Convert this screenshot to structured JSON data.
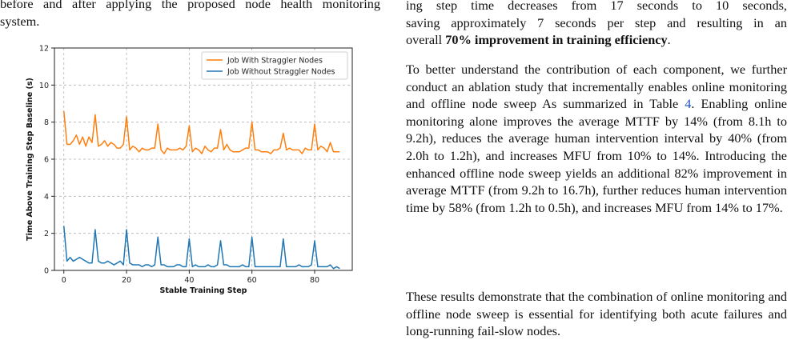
{
  "caption_tail": {
    "line1": "before and after applying the proposed node health monitoring",
    "line2": "system."
  },
  "paragraphs": {
    "p1_line1": "ing step time decreases from 17 seconds to 10 seconds,",
    "p1_line2": "saving approximately 7 seconds per step and resulting in an",
    "p1_line3_pre": "overall ",
    "p1_line3_bold": "70% improvement in training efficiency",
    "p1_line3_post": ".",
    "p2_pre": "To better understand the contribution of each component, we further conduct an ablation study that incrementally enables online monitoring and offline node sweep As summarized in Table ",
    "p2_ref": "4",
    "p2_post": ". Enabling online monitoring alone improves the average MTTF by 14% (from 8.1h to 9.2h), reduces the average human intervention interval by 40% (from 2.0h to 1.2h), and increases MFU from 10% to 14%. Introducing the enhanced offline node sweep yields an additional 82% improvement in average MTTF (from 9.2h to 16.7h), further reduces human intervention time by 58% (from 1.2h to 0.5h), and increases MFU from 14% to 17%.",
    "p3": "These results demonstrate that the combination of online monitoring and offline node sweep is essential for identifying both acute failures and long-running fail-slow nodes."
  },
  "chart_data": {
    "type": "line",
    "xlabel": "Stable Training Step",
    "ylabel": "Time Above Training Step Baseline (s)",
    "xlim": [
      -3,
      92
    ],
    "ylim": [
      0,
      12
    ],
    "xticks": [
      0,
      20,
      40,
      60,
      80
    ],
    "yticks": [
      0,
      2,
      4,
      6,
      8,
      10,
      12
    ],
    "grid": true,
    "legend_position": "top-right",
    "colors": {
      "with": "#ff7f0e",
      "without": "#1f77b4"
    },
    "x": [
      0,
      1,
      2,
      3,
      4,
      5,
      6,
      7,
      8,
      9,
      10,
      11,
      12,
      13,
      14,
      15,
      16,
      17,
      18,
      19,
      20,
      21,
      22,
      23,
      24,
      25,
      26,
      27,
      28,
      29,
      30,
      31,
      32,
      33,
      34,
      35,
      36,
      37,
      38,
      39,
      40,
      41,
      42,
      43,
      44,
      45,
      46,
      47,
      48,
      49,
      50,
      51,
      52,
      53,
      54,
      55,
      56,
      57,
      58,
      59,
      60,
      61,
      62,
      63,
      64,
      65,
      66,
      67,
      68,
      69,
      70,
      71,
      72,
      73,
      74,
      75,
      76,
      77,
      78,
      79,
      80,
      81,
      82,
      83,
      84,
      85,
      86,
      87,
      88
    ],
    "series": [
      {
        "name": "Job With Straggler Nodes",
        "values": [
          8.6,
          6.8,
          6.8,
          7.0,
          7.3,
          6.8,
          7.2,
          6.7,
          7.2,
          6.9,
          8.4,
          6.7,
          6.8,
          7.0,
          6.7,
          6.9,
          6.8,
          6.6,
          6.6,
          6.8,
          8.3,
          6.5,
          6.7,
          6.6,
          6.4,
          6.6,
          6.5,
          6.5,
          6.6,
          6.6,
          7.9,
          6.5,
          6.3,
          6.6,
          6.5,
          6.5,
          6.5,
          6.6,
          6.5,
          6.7,
          7.8,
          6.4,
          6.6,
          6.5,
          6.3,
          6.7,
          6.5,
          6.4,
          6.6,
          6.6,
          7.6,
          6.5,
          6.8,
          6.5,
          6.4,
          6.4,
          6.4,
          6.5,
          6.6,
          6.6,
          8.0,
          6.5,
          6.5,
          6.4,
          6.4,
          6.4,
          6.3,
          6.5,
          6.5,
          6.6,
          7.4,
          6.5,
          6.6,
          6.5,
          6.5,
          6.5,
          6.3,
          6.6,
          6.5,
          6.5,
          7.9,
          6.5,
          6.7,
          6.6,
          6.4,
          6.9,
          6.4,
          6.4,
          6.4
        ]
      },
      {
        "name": "Job Without Straggler Nodes",
        "values": [
          2.4,
          0.5,
          0.7,
          0.5,
          0.6,
          0.7,
          0.6,
          0.5,
          0.4,
          0.4,
          2.2,
          0.5,
          0.4,
          0.4,
          0.5,
          0.4,
          0.3,
          0.4,
          0.5,
          0.3,
          2.2,
          0.4,
          0.3,
          0.3,
          0.3,
          0.2,
          0.3,
          0.3,
          0.2,
          0.3,
          1.8,
          0.3,
          0.3,
          0.2,
          0.2,
          0.2,
          0.3,
          0.3,
          0.2,
          0.2,
          1.7,
          0.2,
          0.3,
          0.2,
          0.2,
          0.2,
          0.3,
          0.2,
          0.2,
          0.3,
          1.6,
          0.3,
          0.3,
          0.2,
          0.2,
          0.2,
          0.2,
          0.3,
          0.2,
          0.2,
          1.8,
          0.2,
          0.2,
          0.2,
          0.2,
          0.2,
          0.2,
          0.2,
          0.2,
          0.2,
          1.7,
          0.2,
          0.2,
          0.2,
          0.2,
          0.3,
          0.2,
          0.2,
          0.2,
          0.3,
          1.6,
          0.2,
          0.2,
          0.2,
          0.2,
          0.3,
          0.1,
          0.2,
          0.1
        ]
      }
    ]
  }
}
